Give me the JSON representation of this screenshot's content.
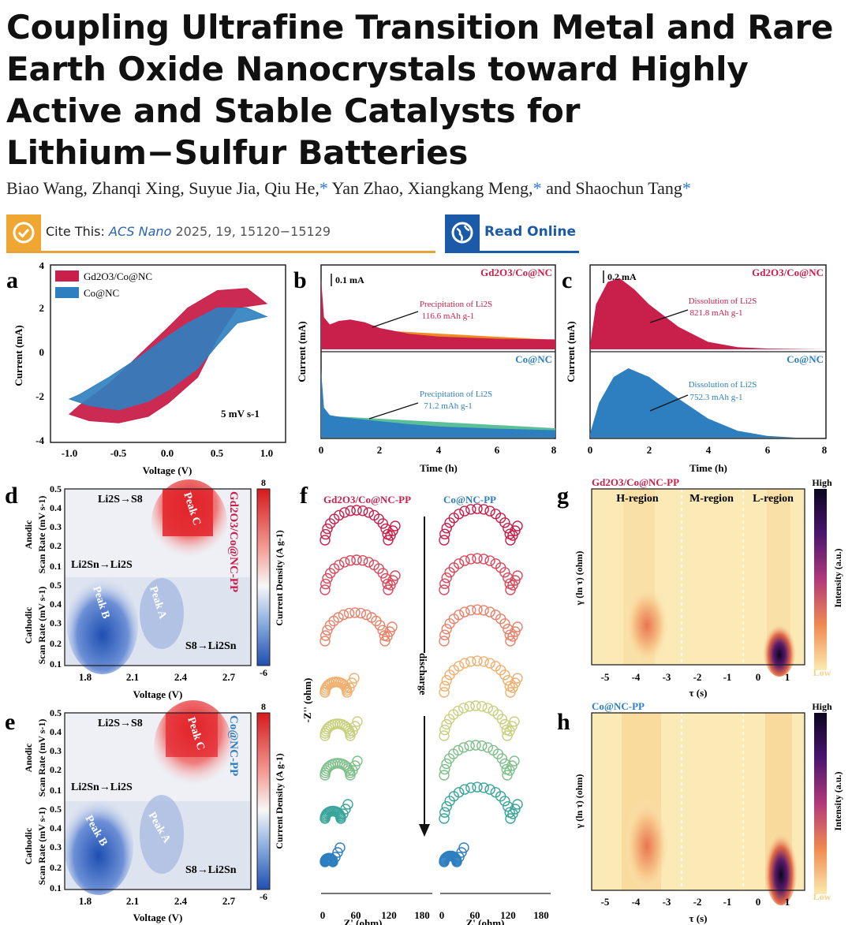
{
  "paper": {
    "title": "Coupling Ultrafine Transition Metal and Rare Earth Oxide Nanocrystals toward Highly Active and Stable Catalysts for Lithium−Sulfur Batteries",
    "authors": [
      "Biao Wang",
      "Zhanqi Xing",
      "Suyue Jia",
      "Qiu He,",
      "Yan Zhao",
      "Xiangkang Meng,",
      "Shaochun Tang"
    ],
    "cite_label": "Cite This:",
    "cite_journal": "ACS Nano",
    "cite_ref": "2025, 19, 15120−15129",
    "read_online": "Read Online",
    "colors": {
      "accent_orange": "#f0a732",
      "accent_blue": "#1a5aa8",
      "gd_series": "#c8204a",
      "co_series": "#2e7fc0"
    }
  },
  "panels": {
    "a": {
      "letter": "a",
      "legend": [
        "Gd2O3/Co@NC",
        "Co@NC"
      ],
      "annotation": "5 mV s-1",
      "xlabel": "Voltage (V)",
      "ylabel": "Current (mA)",
      "xticks": [
        "-1.0",
        "-0.5",
        "0.0",
        "0.5",
        "1.0"
      ],
      "yticks": [
        "4",
        "2",
        "0",
        "-2",
        "-4"
      ]
    },
    "b": {
      "letter": "b",
      "scale": "0.1 mA",
      "top_label": "Gd2O3/Co@NC",
      "bottom_label": "Co@NC",
      "top_annot": [
        "Precipitation of Li2S",
        "116.6 mAh g-1"
      ],
      "bottom_annot": [
        "Precipitation of Li2S",
        "71.2 mAh g-1"
      ],
      "xlabel": "Time (h)",
      "ylabel": "Current (mA)",
      "xticks": [
        "0",
        "2",
        "4",
        "6",
        "8"
      ]
    },
    "c": {
      "letter": "c",
      "scale": "0.2 mA",
      "top_label": "Gd2O3/Co@NC",
      "bottom_label": "Co@NC",
      "top_annot": [
        "Dissolution of Li2S",
        "821.8 mAh g-1"
      ],
      "bottom_annot": [
        "Dissolution of Li2S",
        "752.3 mAh g-1"
      ],
      "xlabel": "Time (h)",
      "ylabel": "Current (mA)",
      "xticks": [
        "0",
        "2",
        "4",
        "6",
        "8"
      ]
    },
    "d": {
      "letter": "d",
      "side_label": "Gd2O3/Co@NC-PP",
      "labels": [
        "Li2S→S8",
        "Li2Sn→Li2S",
        "S8→Li2Sn",
        "Peak C",
        "Peak B",
        "Peak A"
      ],
      "xlabel": "Voltage (V)",
      "anodic": "Anodic",
      "cathodic": "Cathodic",
      "ylabel": "Scan Rate (mV s-1)",
      "cbar_label": "Current Density (A g-1)",
      "cbar_max": "8",
      "cbar_min": "-6",
      "xticks": [
        "1.8",
        "2.1",
        "2.4",
        "2.7"
      ],
      "yticks": [
        "0.5",
        "0.4",
        "0.3",
        "0.2",
        "0.1"
      ]
    },
    "e": {
      "letter": "e",
      "side_label": "Co@NC-PP",
      "labels": [
        "Li2S→S8",
        "Li2Sn→Li2S",
        "S8→Li2Sn",
        "Peak C",
        "Peak B",
        "Peak A"
      ],
      "xlabel": "Voltage (V)",
      "anodic": "Anodic",
      "cathodic": "Cathodic",
      "ylabel": "Scan Rate (mV s-1)",
      "cbar_label": "Current Density (A g-1)",
      "cbar_max": "8",
      "cbar_min": "-6",
      "xticks": [
        "1.8",
        "2.1",
        "2.4",
        "2.7"
      ],
      "yticks": [
        "0.5",
        "0.4",
        "0.3",
        "0.2",
        "0.1"
      ]
    },
    "f": {
      "letter": "f",
      "left_title": "Gd2O3/Co@NC-PP",
      "right_title": "Co@NC-PP",
      "arrow_label": "discharge",
      "ylabel": "-Z'' (ohm)",
      "xlabel": "Z' (ohm)",
      "xticks": [
        "0",
        "60",
        "120",
        "180"
      ]
    },
    "g": {
      "letter": "g",
      "title": "Gd2O3/Co@NC-PP",
      "regions": [
        "H-region",
        "M-region",
        "L-region"
      ],
      "xlabel": "τ (s)",
      "ylabel": "γ (ln τ) (ohm)",
      "cbar_label": "Intensity (a.u.)",
      "cbar_high": "High",
      "cbar_low": "Low",
      "xticks": [
        "-5",
        "-4",
        "-3",
        "-2",
        "-1",
        "0",
        "1"
      ]
    },
    "h": {
      "letter": "h",
      "title": "Co@NC-PP",
      "xlabel": "τ (s)",
      "ylabel": "γ (ln τ) (ohm)",
      "cbar_label": "Intensity (a.u.)",
      "cbar_high": "High",
      "cbar_low": "Low",
      "xticks": [
        "-5",
        "-4",
        "-3",
        "-2",
        "-1",
        "0",
        "1"
      ]
    }
  },
  "chart_data": [
    {
      "type": "line",
      "panel": "a",
      "title": "",
      "xlabel": "Voltage (V)",
      "ylabel": "Current (mA)",
      "xlim": [
        -1.2,
        1.2
      ],
      "ylim": [
        -4,
        4
      ],
      "series": [
        {
          "name": "Gd2O3/Co@NC",
          "x": [
            -1.0,
            -0.8,
            -0.5,
            -0.2,
            0.0,
            0.3,
            0.5,
            0.7,
            1.0,
            0.8,
            0.5,
            0.2,
            0.0,
            -0.3,
            -0.6,
            -0.9,
            -1.0
          ],
          "y": [
            -2.7,
            -3.0,
            -3.1,
            -2.8,
            -2.2,
            -1.0,
            0.8,
            2.2,
            2.4,
            3.1,
            3.0,
            2.2,
            1.3,
            0.0,
            -1.3,
            -2.3,
            -2.7
          ]
        },
        {
          "name": "Co@NC",
          "x": [
            -1.0,
            -0.8,
            -0.5,
            -0.2,
            0.0,
            0.3,
            0.5,
            0.7,
            1.0,
            0.8,
            0.5,
            0.2,
            0.0,
            -0.3,
            -0.6,
            -0.9,
            -1.0
          ],
          "y": [
            -2.0,
            -2.3,
            -2.5,
            -2.1,
            -1.6,
            -0.6,
            0.5,
            1.5,
            1.8,
            2.2,
            2.2,
            1.5,
            0.9,
            -0.1,
            -1.0,
            -1.8,
            -2.0
          ]
        }
      ]
    },
    {
      "type": "area",
      "panel": "b",
      "xlabel": "Time (h)",
      "ylabel": "Current (mA)",
      "xlim": [
        0,
        8
      ],
      "series": [
        {
          "name": "Gd2O3/Co@NC",
          "x": [
            0,
            0.1,
            0.3,
            0.6,
            1.0,
            1.5,
            2.0,
            3.0,
            4.0,
            6.0,
            8.0
          ],
          "y": [
            1.0,
            0.45,
            0.35,
            0.4,
            0.42,
            0.38,
            0.3,
            0.22,
            0.18,
            0.15,
            0.14
          ]
        },
        {
          "name": "Co@NC",
          "x": [
            0,
            0.1,
            0.3,
            0.6,
            1.0,
            2.0,
            3.0,
            4.0,
            6.0,
            8.0
          ],
          "y": [
            0.9,
            0.4,
            0.3,
            0.28,
            0.26,
            0.22,
            0.18,
            0.15,
            0.12,
            0.1
          ]
        }
      ]
    },
    {
      "type": "area",
      "panel": "c",
      "xlabel": "Time (h)",
      "ylabel": "Current (mA)",
      "xlim": [
        0,
        8
      ],
      "series": [
        {
          "name": "Gd2O3/Co@NC",
          "x": [
            0,
            0.2,
            0.6,
            1.0,
            1.5,
            2.0,
            3.0,
            4.0,
            5.0,
            6.0,
            8.0
          ],
          "y": [
            0.05,
            0.6,
            0.9,
            0.95,
            0.8,
            0.6,
            0.3,
            0.1,
            0.03,
            0.01,
            0.0
          ]
        },
        {
          "name": "Co@NC",
          "x": [
            0,
            0.3,
            0.8,
            1.3,
            2.0,
            3.0,
            4.0,
            5.0,
            6.0,
            7.0,
            8.0
          ],
          "y": [
            0.05,
            0.4,
            0.7,
            0.8,
            0.7,
            0.45,
            0.22,
            0.08,
            0.02,
            0.0,
            0.0
          ]
        }
      ]
    }
  ]
}
